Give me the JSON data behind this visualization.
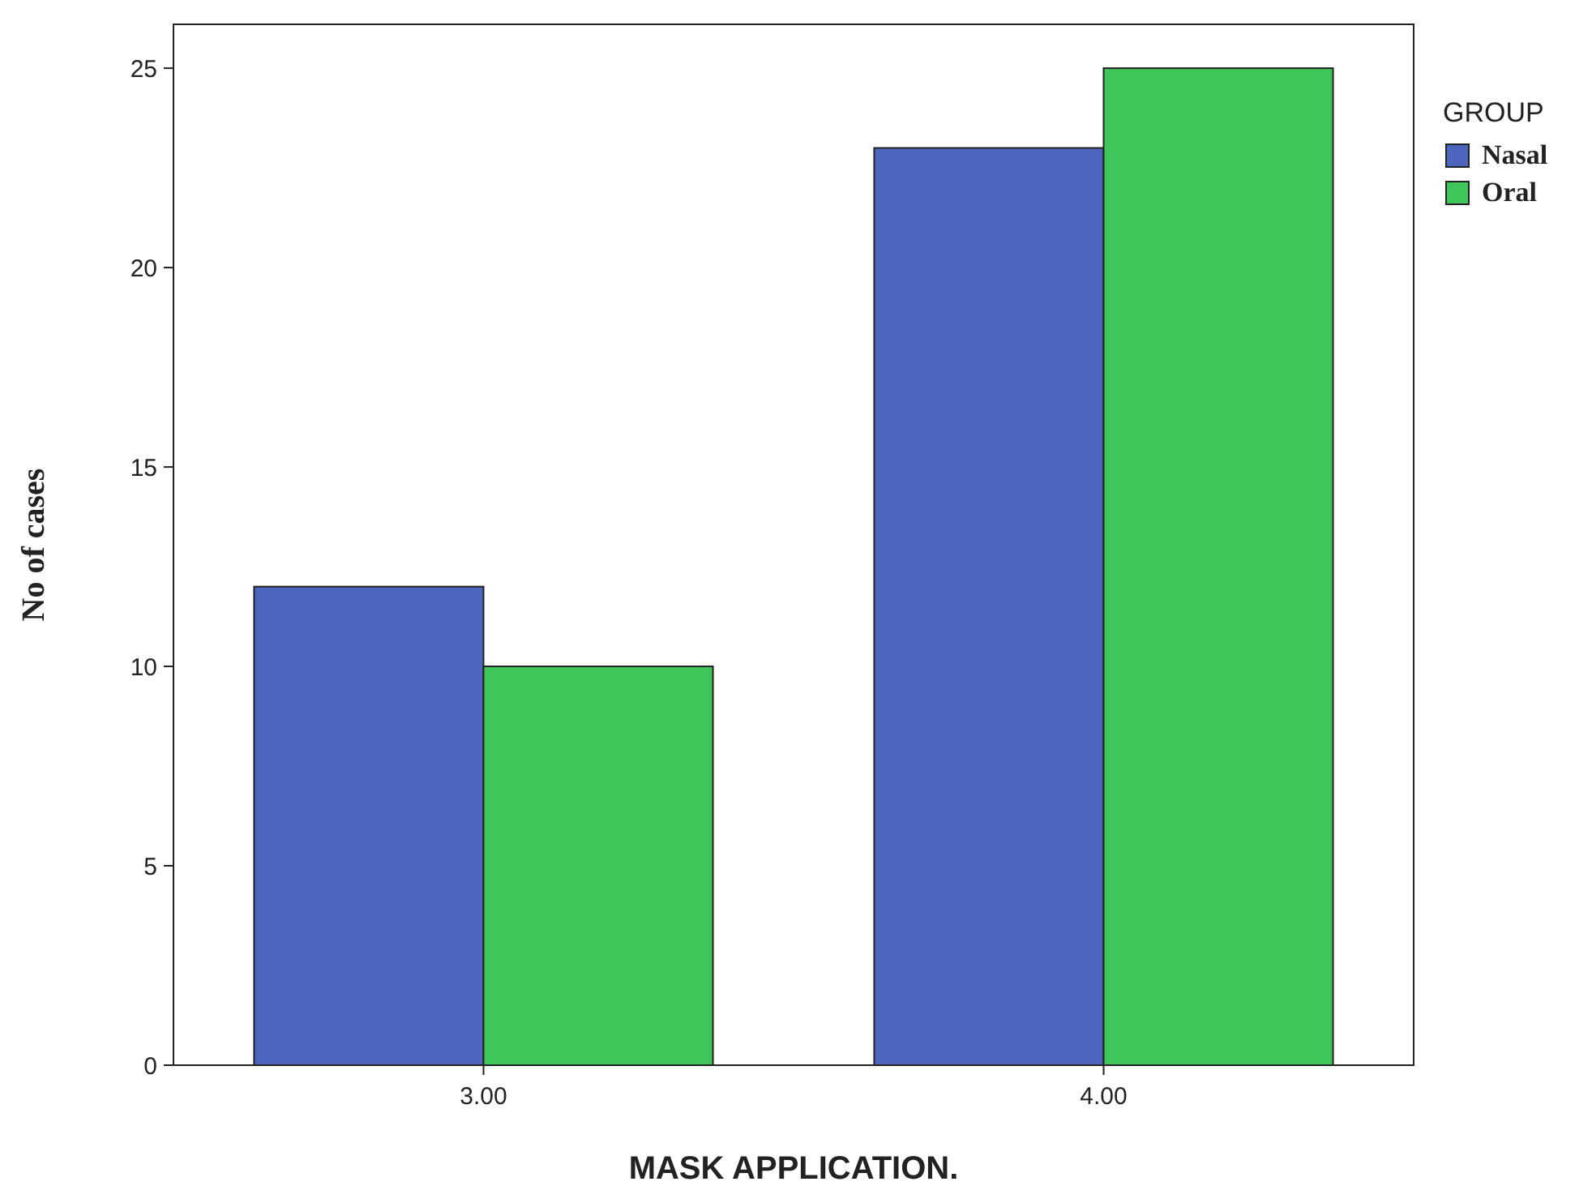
{
  "chart_data": {
    "type": "bar",
    "xlabel": "MASK APPLICATION.",
    "ylabel": "No of cases",
    "legend_title": "GROUP",
    "categories": [
      "3.00",
      "4.00"
    ],
    "series": [
      {
        "name": "Nasal",
        "color": "#4c66be",
        "values": [
          12,
          23
        ]
      },
      {
        "name": "Oral",
        "color": "#3fc65a",
        "values": [
          10,
          25
        ]
      }
    ],
    "ylim": [
      0,
      26.1
    ],
    "yticks": [
      0,
      5,
      10,
      15,
      20,
      25
    ],
    "grid": false,
    "legend": "right"
  }
}
